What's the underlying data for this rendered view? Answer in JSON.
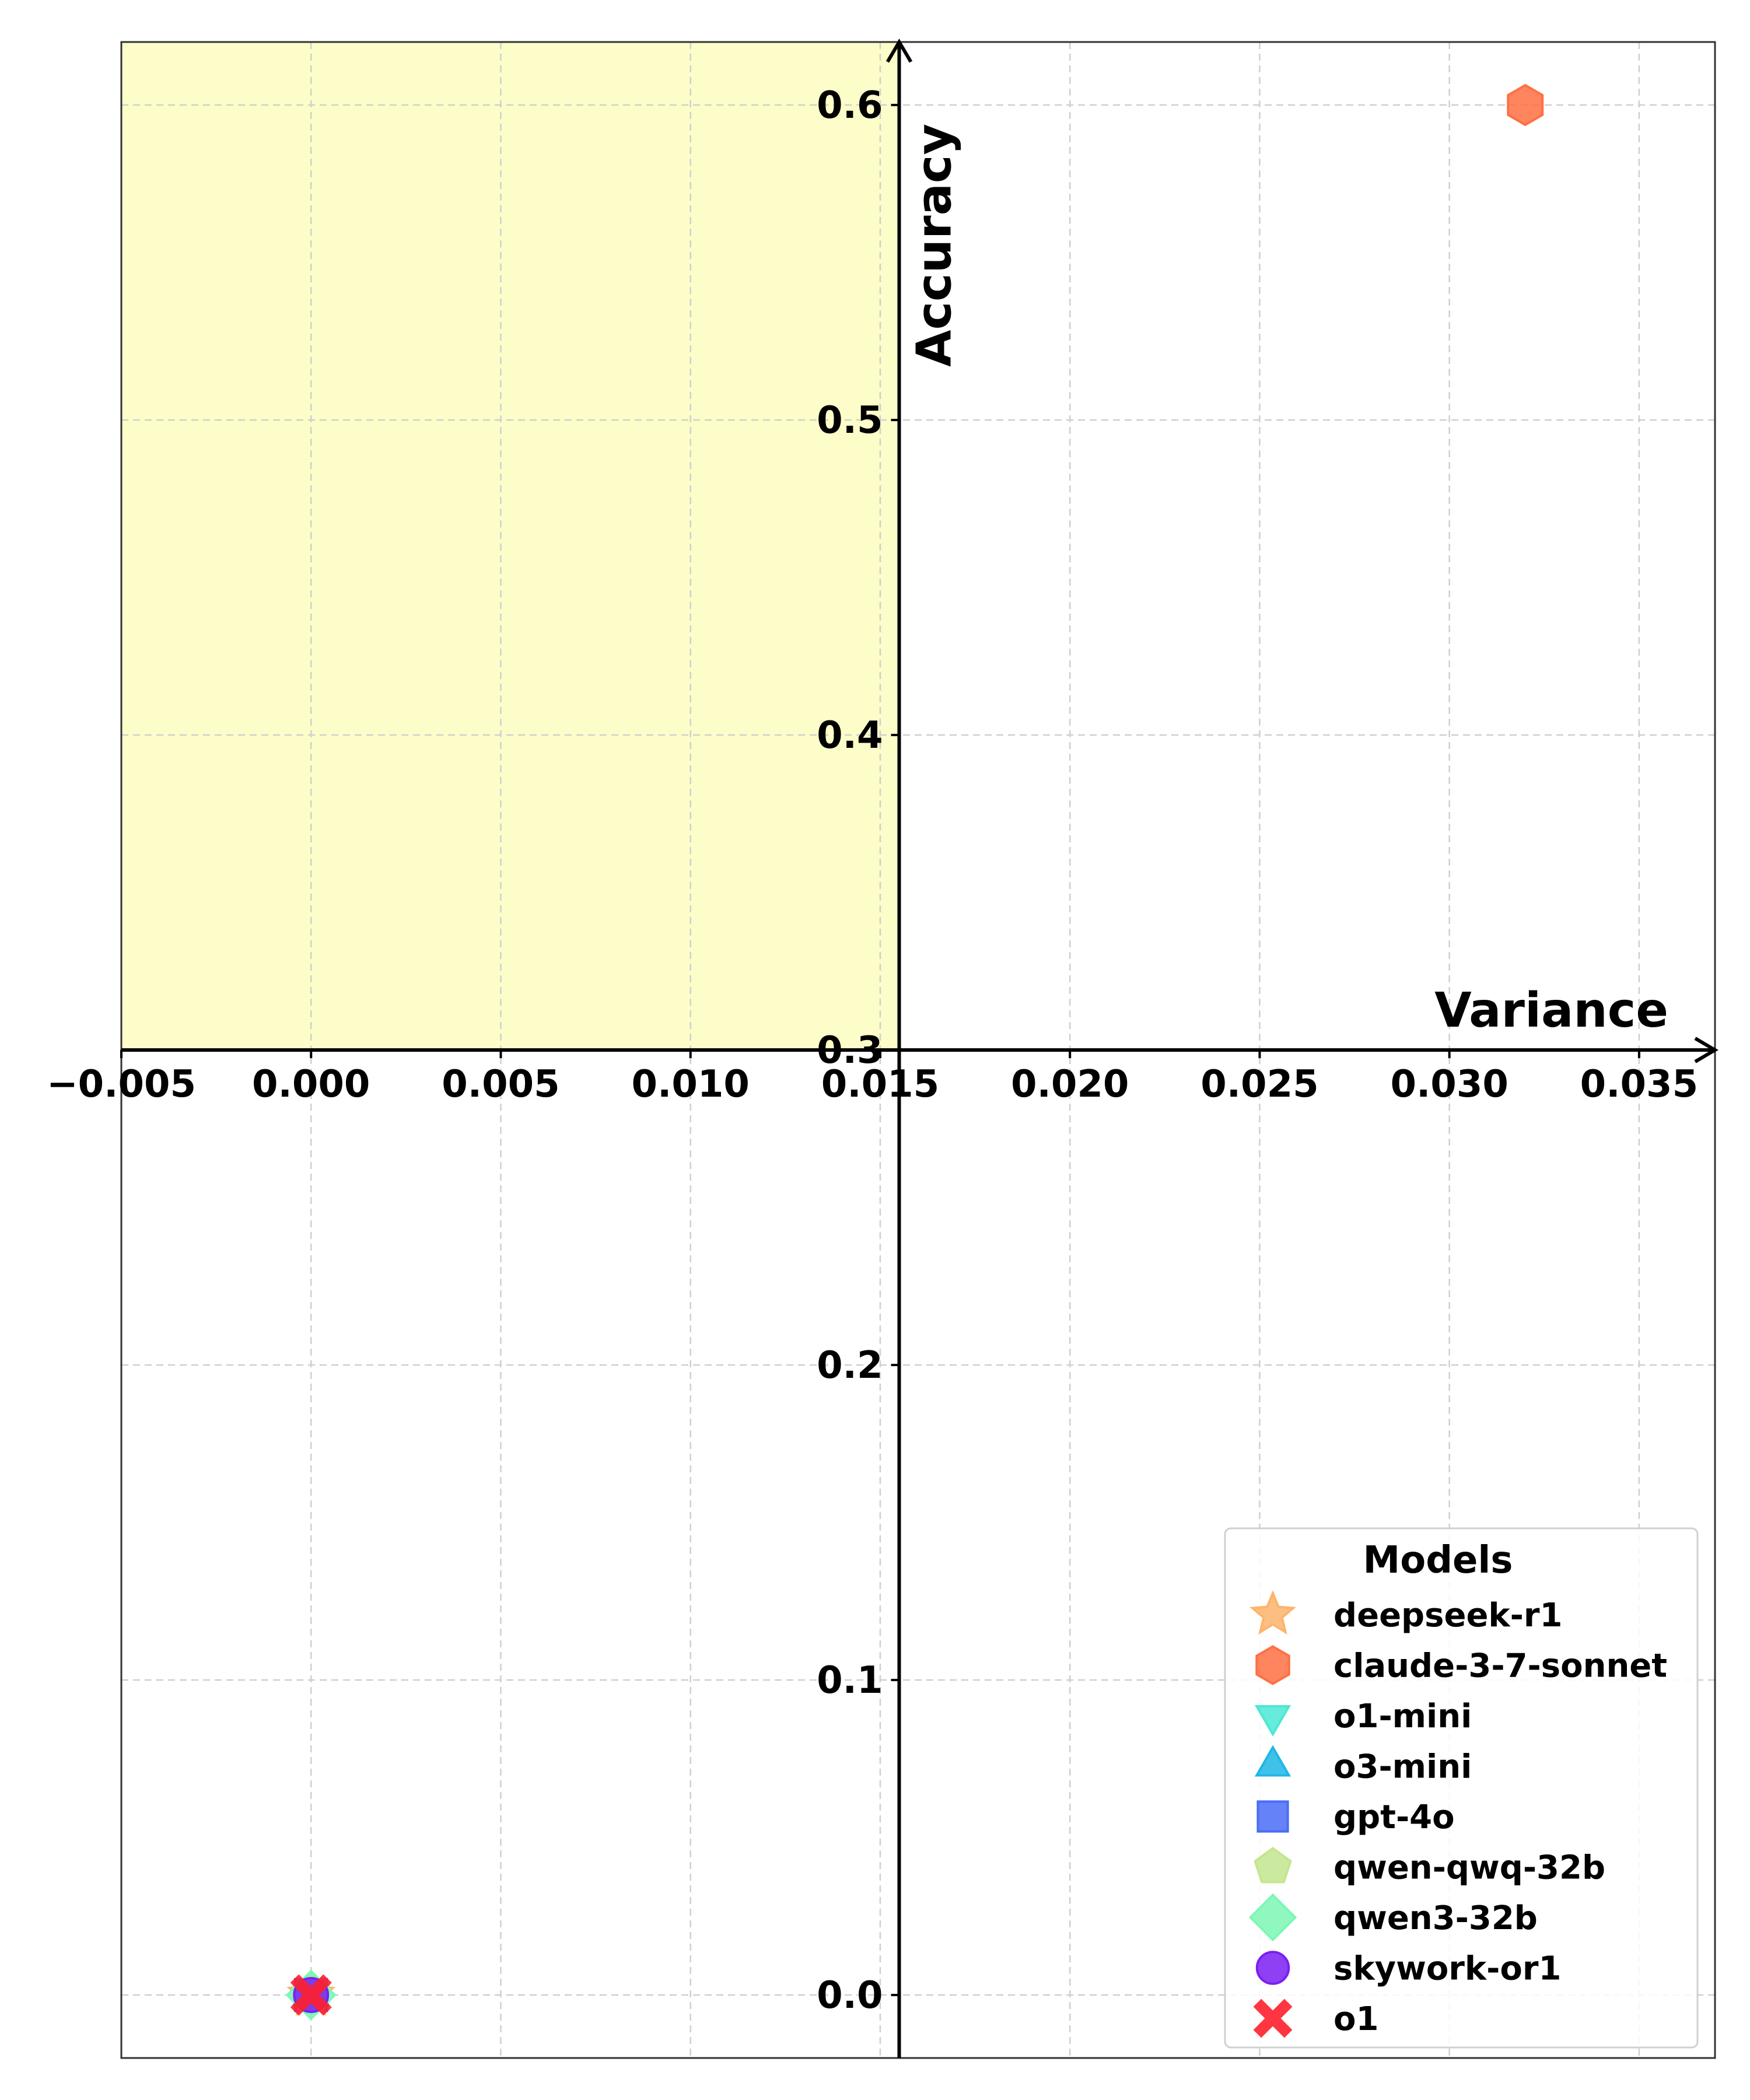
{
  "chart_data": {
    "type": "scatter",
    "xlabel": "Variance",
    "ylabel": "Accuracy",
    "xlim": [
      -0.005,
      0.037
    ],
    "ylim": [
      -0.02,
      0.62
    ],
    "x_ticks": [
      "−0.005",
      "0.000",
      "0.005",
      "0.010",
      "0.015",
      "0.020",
      "0.025",
      "0.030",
      "0.035"
    ],
    "y_ticks": [
      "0.0",
      "0.1",
      "0.2",
      "0.3",
      "0.4",
      "0.5",
      "0.6"
    ],
    "grid": true,
    "highlight_region": {
      "x": [
        -0.005,
        0.016
      ],
      "y": [
        0.3,
        0.62
      ],
      "color": "#fdfdc9"
    },
    "legend": {
      "title": "Models",
      "placement": "lower-right"
    },
    "series": [
      {
        "name": "deepseek-r1",
        "marker": "star",
        "color": "#fdb46b",
        "x": 0.0,
        "y": 0.0
      },
      {
        "name": "claude-3-7-sonnet",
        "marker": "hexagon",
        "color": "#ff7043",
        "x": 0.032,
        "y": 0.6
      },
      {
        "name": "o1-mini",
        "marker": "triangle-down",
        "color": "#4ce8d4",
        "x": 0.0,
        "y": 0.0
      },
      {
        "name": "o3-mini",
        "marker": "triangle-up",
        "color": "#1fb6e6",
        "x": 0.0,
        "y": 0.0
      },
      {
        "name": "gpt-4o",
        "marker": "square",
        "color": "#4a6cf7",
        "x": 0.0,
        "y": 0.0
      },
      {
        "name": "qwen-qwq-32b",
        "marker": "pentagon",
        "color": "#c3e68e",
        "x": 0.0,
        "y": 0.0
      },
      {
        "name": "qwen3-32b",
        "marker": "diamond",
        "color": "#7cf7b4",
        "x": 0.0,
        "y": 0.0
      },
      {
        "name": "skywork-or1",
        "marker": "circle",
        "color": "#7a1ff2",
        "x": 0.0,
        "y": 0.0
      },
      {
        "name": "o1",
        "marker": "x",
        "color": "#ff1f2c",
        "x": 0.0,
        "y": 0.0
      }
    ]
  }
}
